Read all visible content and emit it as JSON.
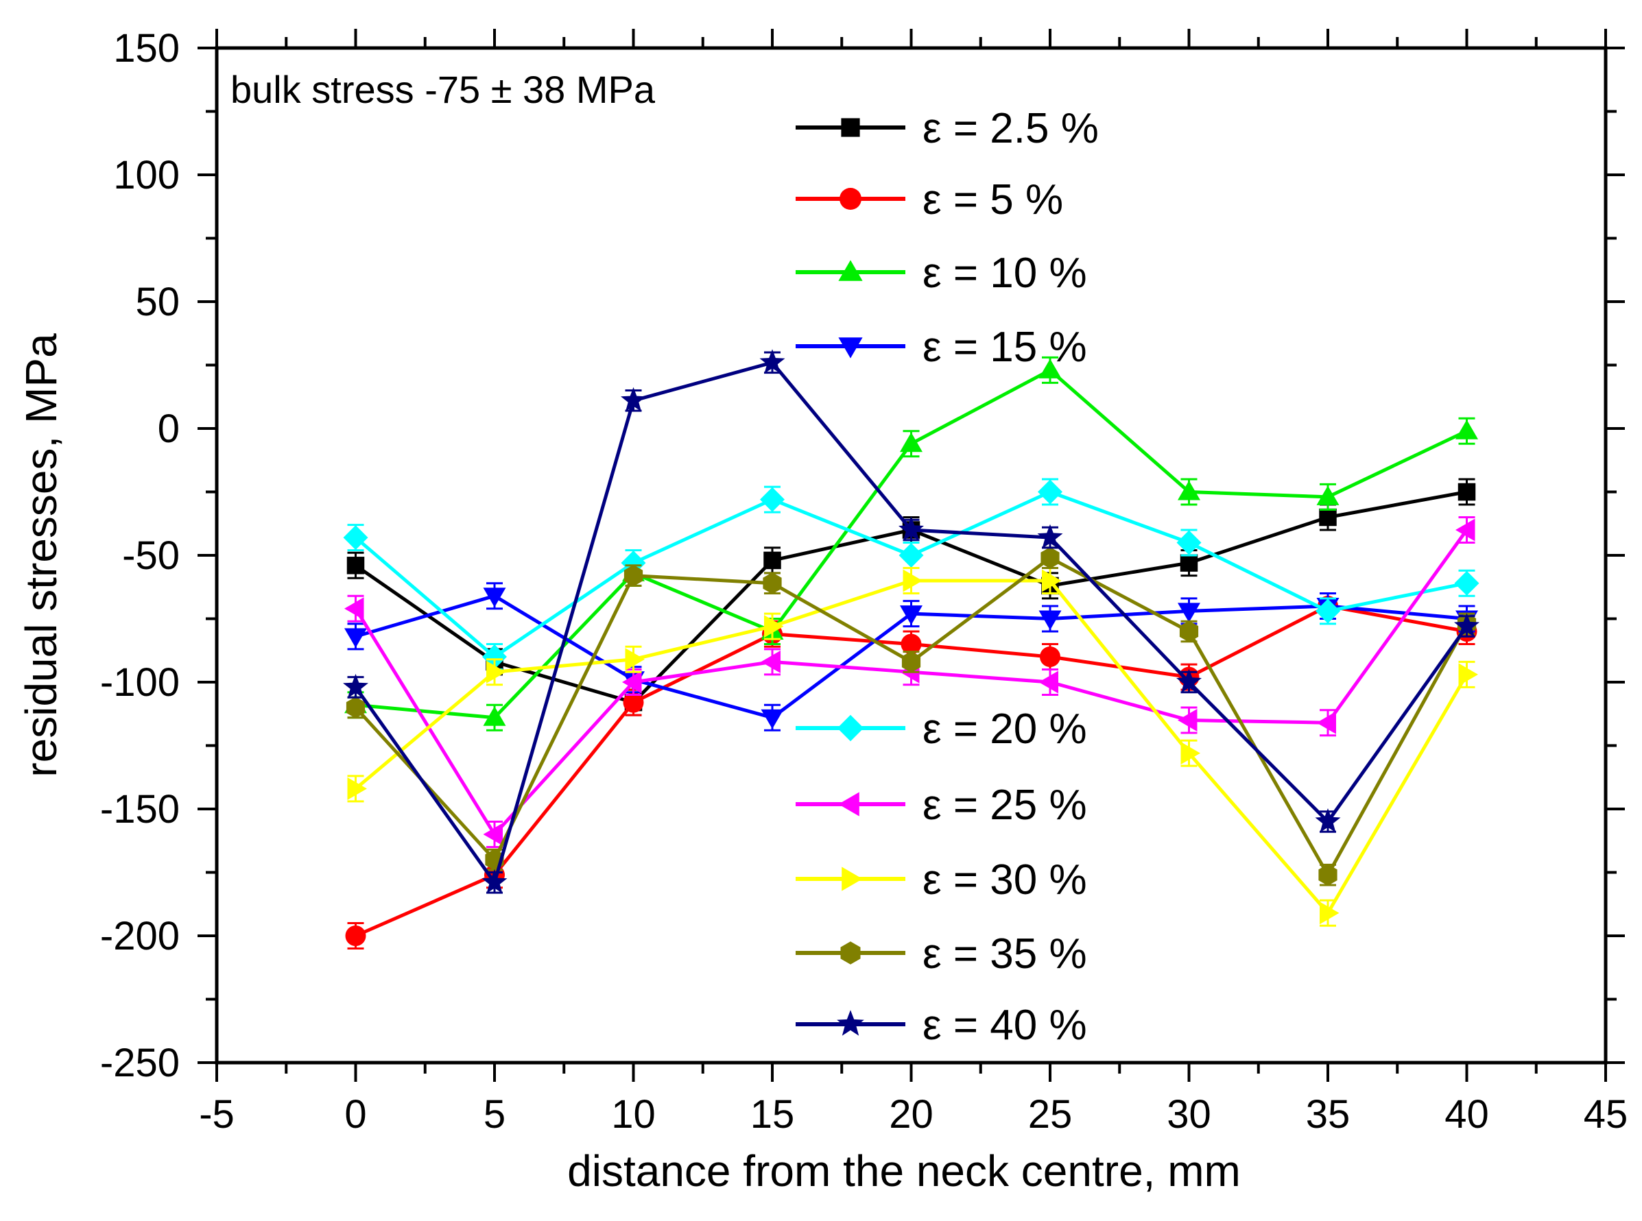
{
  "chart_data": {
    "type": "line",
    "title": "",
    "xlabel": "distance from the neck centre, mm",
    "ylabel": "residual stresses, MPa",
    "xlim": [
      -5,
      45
    ],
    "ylim": [
      -250,
      150
    ],
    "x_ticks": [
      -5,
      0,
      5,
      10,
      15,
      20,
      25,
      30,
      35,
      40,
      45
    ],
    "y_ticks": [
      150,
      100,
      50,
      0,
      -50,
      -100,
      -150,
      -200,
      -250
    ],
    "x_tick_labels": [
      "-5",
      "0",
      "5",
      "10",
      "15",
      "20",
      "25",
      "30",
      "35",
      "40",
      "45"
    ],
    "y_tick_labels": [
      "150",
      "100",
      "50",
      "0",
      "-50",
      "-100",
      "-150",
      "-200",
      "-250"
    ],
    "annotation": "bulk stress -75 ± 38 MPa",
    "x": [
      0,
      5,
      10,
      15,
      20,
      25,
      30,
      35,
      40
    ],
    "series": [
      {
        "name": "ε = 2.5 %",
        "color": "#000000",
        "marker": "square",
        "values": [
          -54,
          -92,
          -108,
          -52,
          -40,
          -62,
          -53,
          -35,
          -25
        ],
        "err": 5
      },
      {
        "name": "ε = 5 %",
        "color": "#ff0000",
        "marker": "circle",
        "values": [
          -200,
          -176,
          -108,
          -81,
          -85,
          -90,
          -98,
          -70,
          -80
        ],
        "err": 5
      },
      {
        "name": "ε = 10 %",
        "color": "#00ee00",
        "marker": "triangle-up",
        "values": [
          -109,
          -114,
          -57,
          -80,
          -6,
          23,
          -25,
          -27,
          -1
        ],
        "err": 5
      },
      {
        "name": "ε = 15 %",
        "color": "#0000ff",
        "marker": "triangle-down",
        "values": [
          -82,
          -66,
          -99,
          -114,
          -73,
          -75,
          -72,
          -70,
          -75
        ],
        "err": 5
      },
      {
        "name": "ε = 20 %",
        "color": "#00ffff",
        "marker": "diamond",
        "values": [
          -43,
          -90,
          -53,
          -28,
          -50,
          -25,
          -45,
          -72,
          -61
        ],
        "err": 5
      },
      {
        "name": "ε = 25 %",
        "color": "#ff00ff",
        "marker": "triangle-left",
        "values": [
          -71,
          -160,
          -100,
          -92,
          -96,
          -100,
          -115,
          -116,
          -40
        ],
        "err": 5
      },
      {
        "name": "ε = 30 %",
        "color": "#ffff00",
        "marker": "triangle-right",
        "values": [
          -142,
          -96,
          -91,
          -78,
          -60,
          -60,
          -128,
          -191,
          -97
        ],
        "err": 5
      },
      {
        "name": "ε = 35 %",
        "color": "#808000",
        "marker": "hexagon",
        "values": [
          -110,
          -170,
          -58,
          -61,
          -92,
          -51,
          -80,
          -176,
          -77
        ],
        "err": 4
      },
      {
        "name": "ε = 40 %",
        "color": "#000080",
        "marker": "star",
        "values": [
          -102,
          -179,
          11,
          26,
          -40,
          -43,
          -100,
          -155,
          -78
        ],
        "err": 4
      }
    ]
  }
}
